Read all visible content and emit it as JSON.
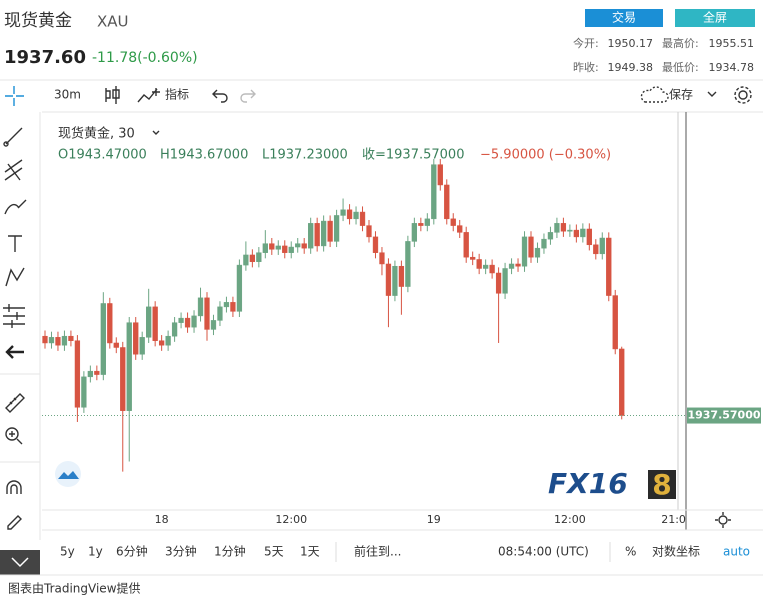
{
  "header": {
    "name": "现货黄金",
    "symbol": "XAU",
    "price": "1937.60",
    "change": "-11.78(-0.60%)",
    "buttons": [
      "交易",
      "全屏"
    ],
    "stats": [
      [
        "今开:",
        "1950.17"
      ],
      [
        "最高价:",
        "1955.51"
      ],
      [
        "昨收:",
        "1949.38"
      ],
      [
        "最低价:",
        "1934.78"
      ]
    ]
  },
  "toolbar": {
    "interval": "30m",
    "indicators": "指标",
    "save": "保存"
  },
  "bottom_bar": {
    "ranges": [
      "5y",
      "1y",
      "6分钟",
      "3分钟",
      "1分钟",
      "5天",
      "1天"
    ],
    "goto": "前往到...",
    "time": "08:54:00 (UTC)",
    "percent": "%",
    "log": "对数坐标",
    "auto": "auto"
  },
  "footer": "图表由TradingView提供",
  "watermark": {
    "fx": "FX16",
    "eight": "8"
  },
  "chart_data": {
    "type": "candlestick",
    "title": "现货黄金, 30",
    "legend": [
      "O1943.47000",
      "H1943.67000",
      "L1937.23000",
      "收=1937.57000",
      "−5.90000 (−0.30%)"
    ],
    "up_color": "#6ba583",
    "down_color": "#d75442",
    "ylim": [
      1929.2,
      1964.2
    ],
    "last_price": {
      "value": 1937.57,
      "label": "1937.57000"
    },
    "categories": [
      null,
      null,
      null,
      null,
      null,
      null,
      null,
      null,
      null,
      null,
      null,
      null,
      null,
      null,
      null,
      null,
      null,
      null,
      "18",
      null,
      null,
      null,
      null,
      null,
      null,
      null,
      null,
      null,
      null,
      null,
      null,
      null,
      null,
      null,
      null,
      null,
      null,
      null,
      "12:00",
      null,
      null,
      null,
      null,
      null,
      null,
      null,
      null,
      null,
      null,
      null,
      null,
      null,
      null,
      null,
      null,
      null,
      null,
      null,
      null,
      null,
      "19",
      null,
      null,
      null,
      null,
      null,
      null,
      null,
      null,
      null,
      null,
      null,
      null,
      null,
      null,
      null,
      null,
      null,
      null,
      null,
      null,
      "12:00",
      null,
      null,
      null,
      null,
      null,
      null,
      null,
      null,
      null,
      null,
      null,
      null,
      null,
      null,
      null,
      "21:0"
    ],
    "open": [
      1944.6,
      1944.0,
      1944.5,
      1943.8,
      1944.6,
      1944.2,
      1938.3,
      1941.0,
      1941.5,
      1941.2,
      1947.5,
      1944.0,
      1943.6,
      1938.0,
      1945.8,
      1943.0,
      1944.5,
      1947.2,
      1944.2,
      1943.8,
      1944.6,
      1945.8,
      1946.2,
      1945.4,
      1946.4,
      1948.0,
      1945.2,
      1946.0,
      1947.2,
      1947.6,
      1946.8,
      1950.9,
      1951.8,
      1951.2,
      1952.0,
      1952.8,
      1952.3,
      1952.6,
      1952.0,
      1952.5,
      1952.8,
      1952.4,
      1954.6,
      1952.6,
      1954.8,
      1953.0,
      1955.3,
      1955.8,
      1955.0,
      1955.6,
      1954.4,
      1953.4,
      1952.0,
      1951.0,
      1948.2,
      1950.8,
      1949.0,
      1953.0,
      1954.6,
      1954.4,
      1955.0,
      1959.8,
      1958.0,
      1955.0,
      1954.4,
      1953.8,
      1951.6,
      1951.4,
      1950.6,
      1950.9,
      1950.2,
      1948.4,
      1950.6,
      1951.0,
      1950.8,
      1953.4,
      1951.6,
      1952.4,
      1953.2,
      1953.8,
      1954.6,
      1953.9,
      1954.0,
      1953.4,
      1954.1,
      1952.7,
      1951.9,
      1953.3,
      1948.2,
      1943.47,
      null,
      null,
      null,
      null,
      null,
      null,
      null,
      null
    ],
    "high": [
      1945.1,
      1945.0,
      1945.0,
      1945.1,
      1945.1,
      1944.7,
      1941.5,
      1942.0,
      1942.0,
      1948.5,
      1948.0,
      1944.5,
      1944.1,
      1946.3,
      1946.3,
      1945.0,
      1948.8,
      1947.7,
      1944.7,
      1945.1,
      1946.3,
      1946.7,
      1946.7,
      1946.9,
      1948.9,
      1948.5,
      1946.5,
      1947.7,
      1948.1,
      1948.1,
      1951.4,
      1953.0,
      1952.3,
      1952.5,
      1954.0,
      1953.3,
      1953.1,
      1953.1,
      1953.0,
      1953.3,
      1953.3,
      1955.1,
      1955.1,
      1955.3,
      1955.3,
      1955.8,
      1956.8,
      1956.3,
      1956.1,
      1956.1,
      1954.9,
      1953.9,
      1952.5,
      1951.5,
      1951.3,
      1951.3,
      1953.5,
      1955.1,
      1955.1,
      1955.5,
      1960.3,
      1960.3,
      1958.5,
      1955.5,
      1954.9,
      1954.3,
      1952.1,
      1951.9,
      1951.4,
      1951.4,
      1950.7,
      1951.1,
      1951.5,
      1951.5,
      1953.9,
      1953.9,
      1952.9,
      1953.7,
      1954.3,
      1955.1,
      1955.1,
      1954.5,
      1954.5,
      1954.6,
      1954.6,
      1953.2,
      1953.8,
      1953.8,
      1948.7,
      1943.67,
      null,
      null,
      null,
      null,
      null,
      null,
      null,
      null
    ],
    "low": [
      1943.5,
      1943.5,
      1943.3,
      1943.3,
      1943.7,
      1937.0,
      1937.8,
      1940.5,
      1940.7,
      1940.7,
      1943.5,
      1943.1,
      1932.6,
      1933.5,
      1942.5,
      1942.5,
      1944.0,
      1943.7,
      1943.3,
      1943.3,
      1944.1,
      1945.3,
      1944.9,
      1944.9,
      1945.9,
      1944.2,
      1944.7,
      1945.5,
      1946.7,
      1946.3,
      1946.3,
      1950.4,
      1950.7,
      1950.7,
      1951.5,
      1951.8,
      1951.8,
      1951.5,
      1951.5,
      1952.0,
      1951.9,
      1951.9,
      1952.1,
      1952.1,
      1952.5,
      1952.5,
      1954.8,
      1954.5,
      1954.5,
      1953.9,
      1952.9,
      1951.5,
      1950.0,
      1945.4,
      1947.7,
      1946.5,
      1948.5,
      1952.5,
      1953.9,
      1953.9,
      1954.5,
      1957.5,
      1954.5,
      1953.9,
      1953.3,
      1951.1,
      1950.9,
      1950.1,
      1950.1,
      1949.7,
      1944.0,
      1947.9,
      1950.1,
      1950.3,
      1950.3,
      1951.1,
      1951.1,
      1951.9,
      1952.7,
      1953.3,
      1953.4,
      1953.4,
      1952.9,
      1952.9,
      1952.2,
      1951.4,
      1951.4,
      1947.7,
      1943.0,
      1937.23,
      null,
      null,
      null,
      null,
      null,
      null,
      null,
      null
    ],
    "close": [
      1944.0,
      1944.5,
      1943.8,
      1944.6,
      1944.2,
      1938.3,
      1941.0,
      1941.5,
      1941.2,
      1947.5,
      1944.0,
      1943.6,
      1938.0,
      1945.8,
      1943.0,
      1944.5,
      1947.2,
      1944.2,
      1943.8,
      1944.6,
      1945.8,
      1946.2,
      1945.4,
      1946.4,
      1948.0,
      1945.2,
      1946.0,
      1947.2,
      1947.6,
      1946.8,
      1950.9,
      1951.8,
      1951.2,
      1952.0,
      1952.8,
      1952.3,
      1952.6,
      1952.0,
      1952.5,
      1952.8,
      1952.4,
      1954.6,
      1952.6,
      1954.8,
      1953.0,
      1955.3,
      1955.8,
      1955.0,
      1955.6,
      1954.4,
      1953.4,
      1952.0,
      1951.0,
      1948.2,
      1950.8,
      1949.0,
      1953.0,
      1954.6,
      1954.4,
      1955.0,
      1959.8,
      1958.0,
      1955.0,
      1954.4,
      1953.8,
      1951.6,
      1951.4,
      1950.6,
      1950.9,
      1950.2,
      1948.4,
      1950.6,
      1951.0,
      1950.8,
      1953.4,
      1951.6,
      1952.4,
      1953.2,
      1953.8,
      1954.6,
      1953.9,
      1954.0,
      1953.4,
      1954.1,
      1952.7,
      1951.9,
      1953.3,
      1948.2,
      1943.47,
      1937.57,
      null,
      null,
      null,
      null,
      null,
      null,
      null,
      null
    ]
  }
}
